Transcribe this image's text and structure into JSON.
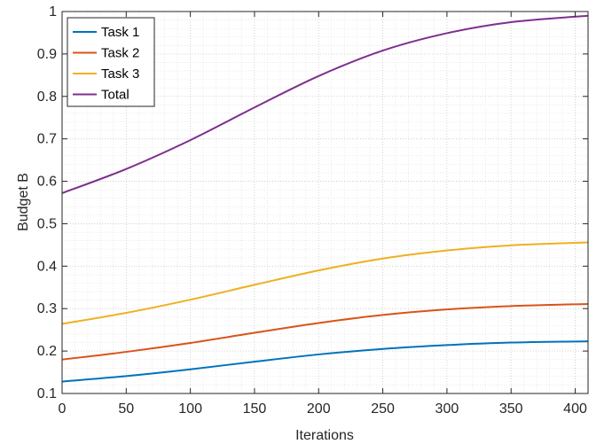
{
  "chart_data": {
    "type": "line",
    "xlabel": "Iterations",
    "ylabel": "Budget B",
    "xlim": [
      0,
      410
    ],
    "ylim": [
      0.1,
      1.0
    ],
    "xticks": [
      0,
      50,
      100,
      150,
      200,
      250,
      300,
      350,
      400
    ],
    "yticks": [
      0.1,
      0.2,
      0.3,
      0.4,
      0.5,
      0.6,
      0.7,
      0.8,
      0.9,
      1.0
    ],
    "ytick_labels": [
      "0.1",
      "0.2",
      "0.3",
      "0.4",
      "0.5",
      "0.6",
      "0.7",
      "0.8",
      "0.9",
      "1"
    ],
    "grid": "major and minor, dotted",
    "legend_position": "top-left",
    "x": [
      0,
      50,
      100,
      150,
      200,
      250,
      300,
      350,
      410
    ],
    "series": [
      {
        "name": "Task 1",
        "color": "#0072BD",
        "values": [
          0.128,
          0.141,
          0.157,
          0.175,
          0.192,
          0.205,
          0.214,
          0.22,
          0.223
        ]
      },
      {
        "name": "Task 2",
        "color": "#D95319",
        "values": [
          0.18,
          0.198,
          0.219,
          0.243,
          0.266,
          0.285,
          0.298,
          0.306,
          0.311
        ]
      },
      {
        "name": "Task 3",
        "color": "#EDB120",
        "values": [
          0.264,
          0.29,
          0.321,
          0.356,
          0.39,
          0.418,
          0.437,
          0.449,
          0.456
        ]
      },
      {
        "name": "Total",
        "color": "#7E2F8E",
        "values": [
          0.572,
          0.629,
          0.697,
          0.774,
          0.848,
          0.908,
          0.949,
          0.975,
          0.99
        ]
      }
    ]
  }
}
